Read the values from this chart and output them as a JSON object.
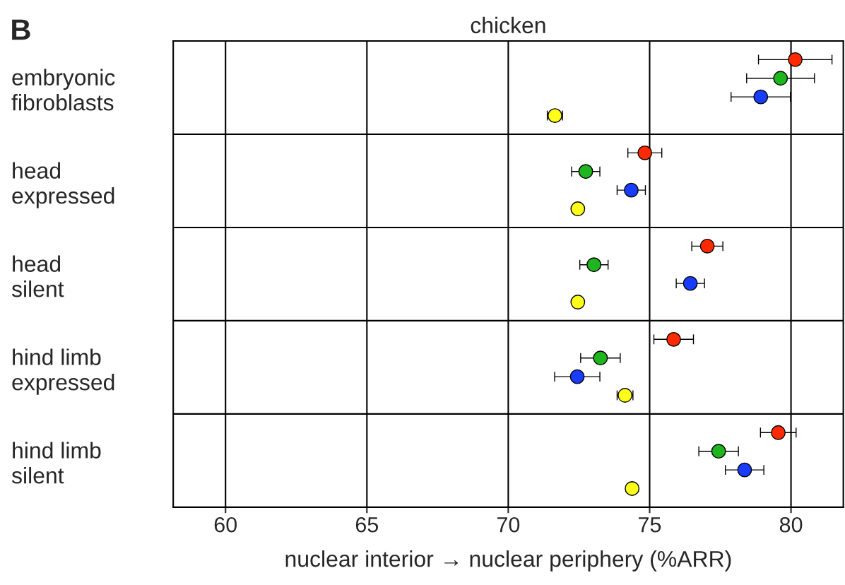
{
  "chart_data": {
    "type": "scatter",
    "orientation": "horizontal",
    "title": "chicken",
    "xlabel": "nuclear interior → nuclear periphery (%ARR)",
    "annotations": [
      "B"
    ],
    "categories": [
      "embryonic\nfibroblasts",
      "head\nexpressed",
      "head\nsilent",
      "hind limb\nexpressed",
      "hind limb\nsilent"
    ],
    "series": [
      {
        "color": "#ff2a00",
        "values": [
          80.15,
          74.83,
          77.04,
          75.85,
          79.55
        ],
        "errors": [
          1.3,
          0.6,
          0.55,
          0.7,
          0.63
        ]
      },
      {
        "color": "#1fb51f",
        "values": [
          79.63,
          72.74,
          73.03,
          73.26,
          77.44
        ],
        "errors": [
          1.2,
          0.5,
          0.5,
          0.7,
          0.7
        ]
      },
      {
        "color": "#1a3cff",
        "values": [
          78.93,
          74.35,
          76.44,
          72.44,
          78.36
        ],
        "errors": [
          1.05,
          0.5,
          0.5,
          0.8,
          0.68
        ]
      },
      {
        "color": "#ffff1a",
        "values": [
          71.65,
          72.46,
          72.46,
          74.13,
          74.38
        ],
        "errors": [
          0.27,
          null,
          null,
          0.28,
          null
        ]
      }
    ],
    "xlim": [
      58.15,
      81.85
    ],
    "xticks": [
      60,
      65,
      70,
      75,
      80
    ],
    "grid": "x",
    "marker": "circle"
  }
}
